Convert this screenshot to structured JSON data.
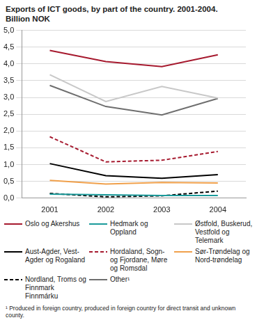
{
  "chart_data": {
    "type": "line",
    "title": "Exports of ICT goods, by part of the country. 2001-2004.",
    "subtitle": "Billion NOK",
    "categories": [
      "2001",
      "2002",
      "2003",
      "2004"
    ],
    "series": [
      {
        "name": "Oslo og Akershus",
        "color": "#a6192e",
        "line_style": "solid",
        "values": [
          4.4,
          4.07,
          3.92,
          4.27
        ]
      },
      {
        "name": "Hedmark og Oppland",
        "color": "#1a9a9a",
        "line_style": "solid",
        "values": [
          0.12,
          0.1,
          0.08,
          0.08
        ]
      },
      {
        "name": "Østfold, Buskerud, Vestfold og Telemark",
        "color": "#c8c8c8",
        "line_style": "solid",
        "values": [
          3.68,
          2.88,
          3.33,
          2.98
        ]
      },
      {
        "name": "Aust-Agder, Vest-Agder og Rogaland",
        "color": "#000000",
        "line_style": "solid",
        "values": [
          1.03,
          0.67,
          0.59,
          0.7
        ]
      },
      {
        "name": "Hordaland, Sogn- og Fjordane, Møre og Romsdal",
        "color": "#a6192e",
        "line_style": "dashed",
        "values": [
          1.83,
          1.08,
          1.13,
          1.39
        ]
      },
      {
        "name": "Sør-Trøndelag og Nord-trøndelag",
        "color": "#f0a04b",
        "line_style": "solid",
        "values": [
          0.53,
          0.42,
          0.47,
          0.45
        ]
      },
      {
        "name": "Nordland, Troms og Finnmark Finnmárku",
        "color": "#000000",
        "line_style": "dashed",
        "values": [
          0.14,
          0.04,
          0.07,
          0.21
        ]
      },
      {
        "name": "Other¹",
        "color": "#6e6e6e",
        "line_style": "solid",
        "values": [
          3.36,
          2.73,
          2.48,
          2.97
        ]
      }
    ],
    "ylim": [
      0,
      5
    ],
    "yticks": [
      {
        "value": 0,
        "label": "0,0"
      },
      {
        "value": 0.5,
        "label": "0,5"
      },
      {
        "value": 1,
        "label": "1,0"
      },
      {
        "value": 1.5,
        "label": "1,5"
      },
      {
        "value": 2,
        "label": "2,0"
      },
      {
        "value": 2.5,
        "label": "2,5"
      },
      {
        "value": 3,
        "label": "3,0"
      },
      {
        "value": 3.5,
        "label": "3,5"
      },
      {
        "value": 4,
        "label": "4,0"
      },
      {
        "value": 4.5,
        "label": "4,5"
      },
      {
        "value": 5,
        "label": "5,0"
      }
    ],
    "grid": true,
    "footnote": "¹ Produced in foreign country, produced in foreign country for direct transit and unknown county."
  }
}
